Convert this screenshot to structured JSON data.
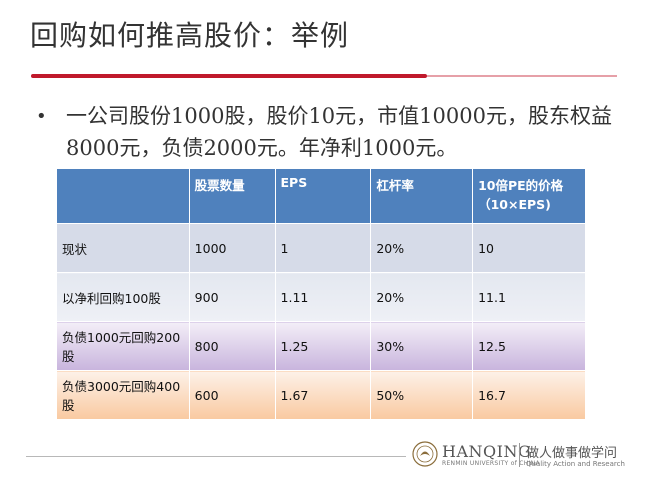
{
  "title": "回购如何推高股价：举例",
  "bullet": "一公司股份1000股，股价10元，市值10000元，股东权益8000元，负债2000元。年净利1000元。",
  "table": {
    "headers": [
      "",
      "股票数量",
      "EPS",
      "杠杆率",
      "10倍PE的价格（10×EPS)"
    ],
    "rows": [
      [
        "现状",
        "1000",
        "1",
        "20%",
        "10"
      ],
      [
        "以净利回购100股",
        "900",
        "1.11",
        "20%",
        "11.1"
      ],
      [
        "负债1000元回购200股",
        "800",
        "1.25",
        "30%",
        "12.5"
      ],
      [
        "负债3000元回购400股",
        "600",
        "1.67",
        "50%",
        "16.7"
      ]
    ]
  },
  "footer": {
    "brand": "HANQING",
    "brand_sub": "RENMIN UNIVERSITY of CHINA",
    "motto": "做人做事做学问",
    "motto_sub": "Quality Action and Research"
  },
  "colors": {
    "accent_red": "#c0192b",
    "header_blue": "#4f81bd"
  }
}
